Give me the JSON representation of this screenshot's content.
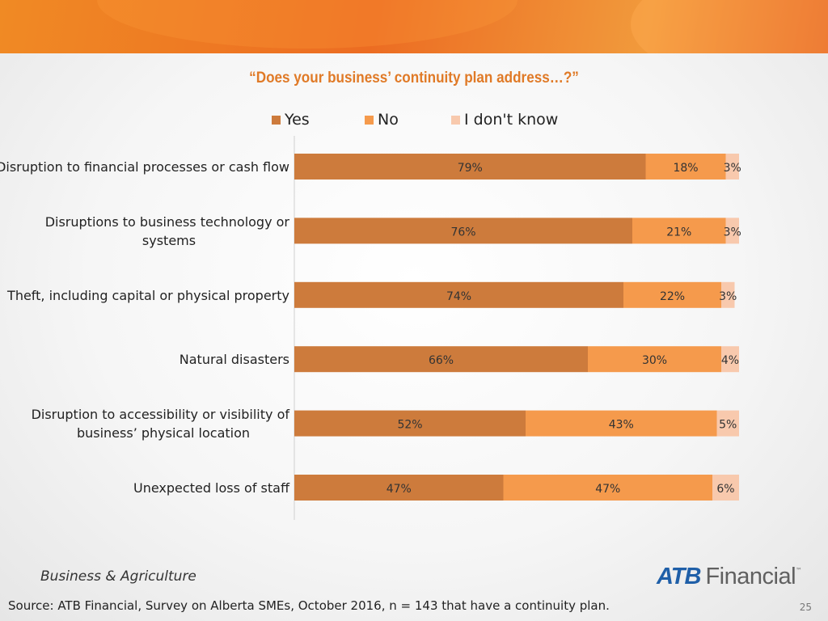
{
  "slide": {
    "title": "“Does your business’ continuity plan address…?”",
    "footer_left": "Business & Agriculture",
    "source": "Source:  ATB Financial, Survey on Alberta SMEs, October 2016, n = 143 that have a continuity plan.",
    "page_number": "25",
    "logo": {
      "atb": "ATB",
      "financial": "Financial",
      "tm": "™"
    },
    "colors": {
      "band": "#ec6c22",
      "title": "#e07a27"
    }
  },
  "chart_data": {
    "type": "bar",
    "orientation": "horizontal",
    "stacked": "100%",
    "title": "“Does your business’ continuity plan address…?”",
    "categories": [
      [
        "Disruption to financial processes or cash flow"
      ],
      [
        "Disruptions to business technology or",
        "systems"
      ],
      [
        "Theft, including  capital or physical property"
      ],
      [
        "Natural disasters"
      ],
      [
        "Disruption to accessibility or visibility of",
        "business’ physical location"
      ],
      [
        "Unexpected loss of staff"
      ]
    ],
    "series": [
      {
        "name": "Yes",
        "color": "#cd7b3c",
        "values": [
          79,
          76,
          74,
          66,
          52,
          47
        ]
      },
      {
        "name": "No",
        "color": "#f59a4c",
        "values": [
          18,
          21,
          22,
          30,
          43,
          47
        ]
      },
      {
        "name": "I don't know",
        "color": "#f8c9ad",
        "values": [
          3,
          3,
          3,
          4,
          5,
          6
        ]
      }
    ],
    "value_suffix": "%",
    "xlim": [
      0,
      100
    ],
    "legend_position": "top",
    "grid": false
  }
}
